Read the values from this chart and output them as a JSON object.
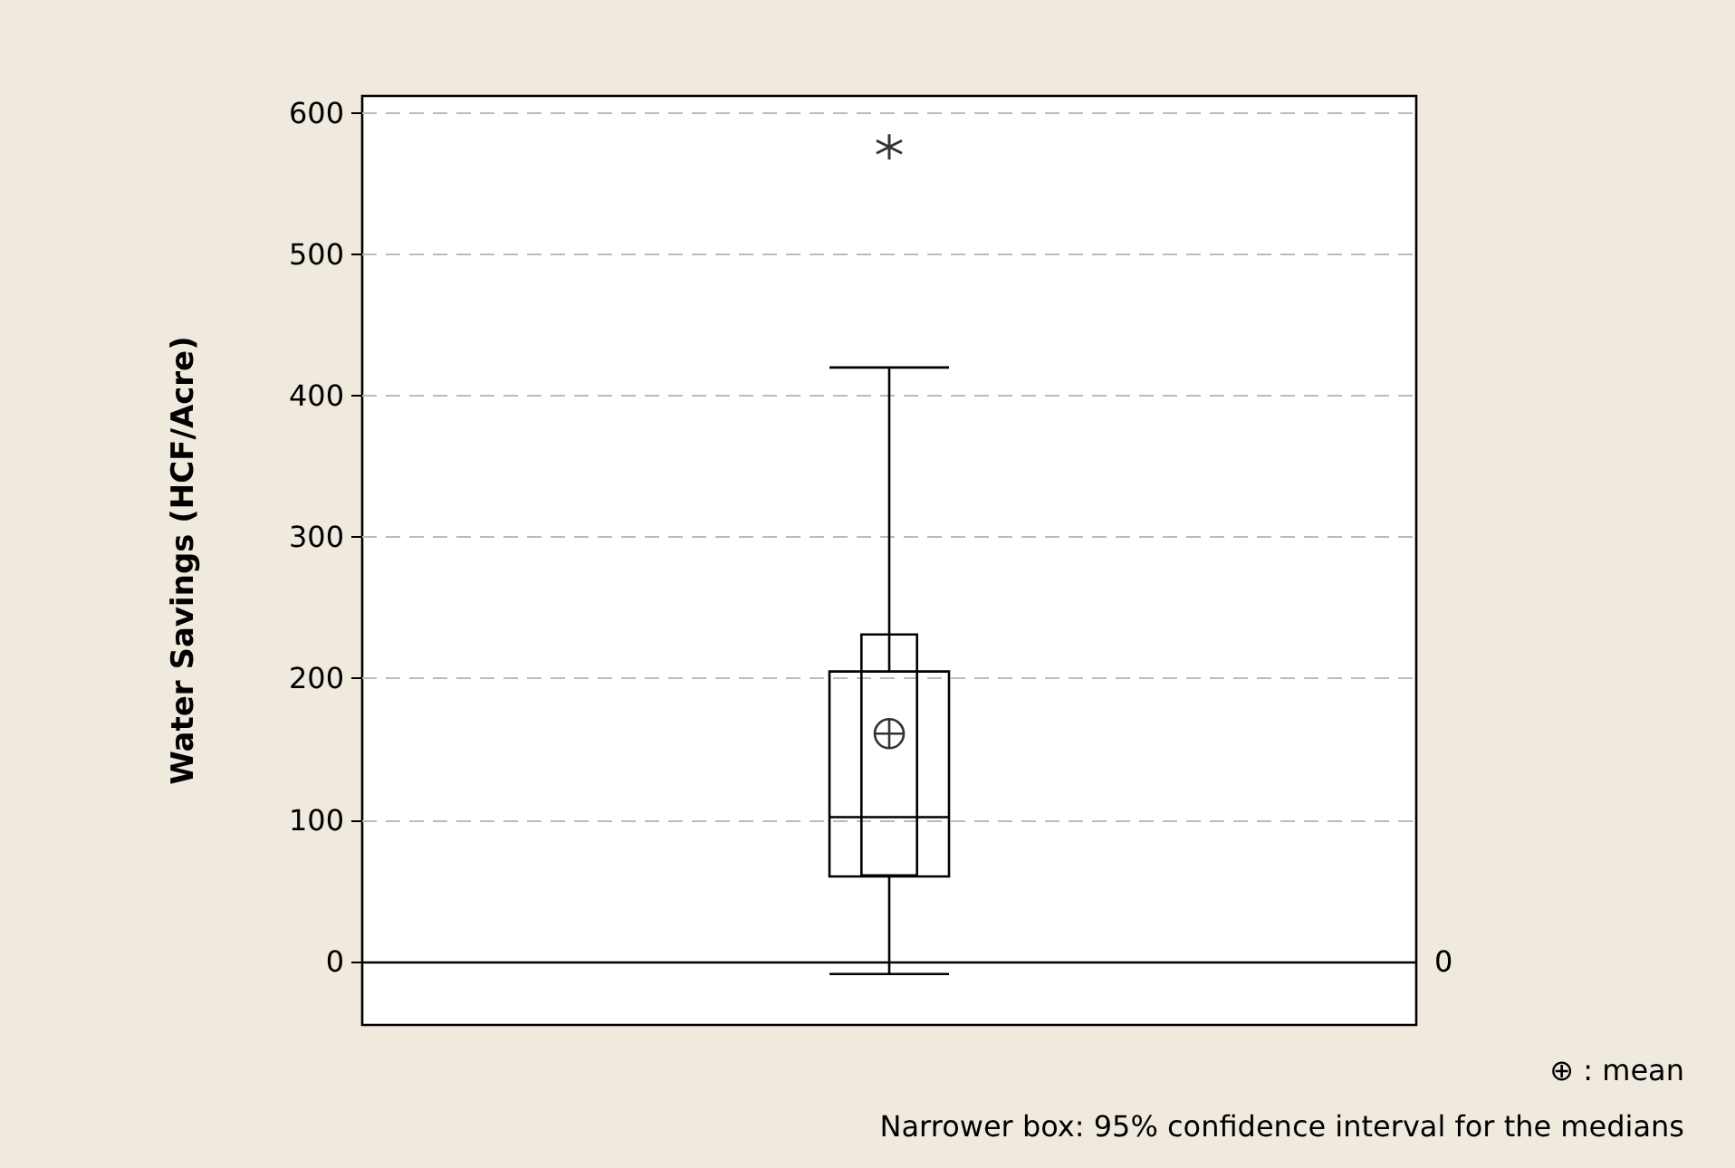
{
  "chart_data": {
    "type": "box",
    "ylabel": "Water Savings (HCF/Acre)",
    "categories": [
      null
    ],
    "series": [
      {
        "boxes": [
          {
            "low": -9,
            "q1": 60,
            "median": 102,
            "q3": 205,
            "high": 420,
            "mean": 161,
            "outliers": [
              576
            ]
          }
        ]
      },
      {
        "type": "bar",
        "base": [
          60
        ],
        "values": [
          172
        ],
        "color": "#000000"
      }
    ],
    "ylim": [
      -45,
      612
    ],
    "yticks": [
      0,
      100,
      200,
      300,
      400,
      500,
      600
    ],
    "grid": "y",
    "ref_lines": [
      {
        "axis": "y",
        "value": 0,
        "label": "0"
      }
    ],
    "annotations": [
      "⊕ : mean",
      "Narrower box: 95% confidence interval for the medians"
    ]
  }
}
